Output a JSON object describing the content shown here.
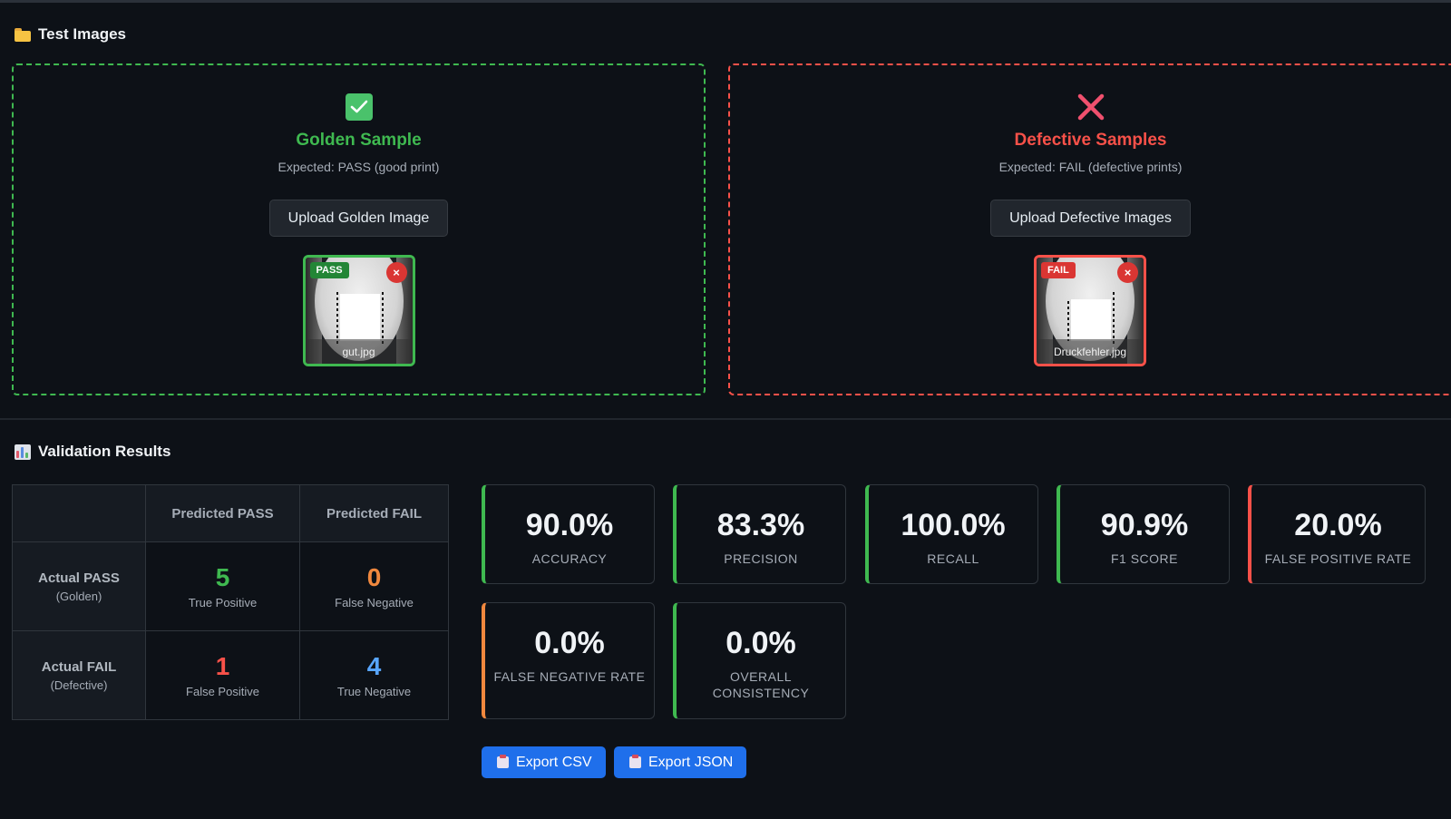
{
  "test_images": {
    "title": "Test Images",
    "golden": {
      "title": "Golden Sample",
      "subtitle": "Expected: PASS (good print)",
      "upload_label": "Upload Golden Image",
      "badge": "PASS",
      "remove": "×",
      "filename": "gut.jpg"
    },
    "defective": {
      "title": "Defective Samples",
      "subtitle": "Expected: FAIL (defective prints)",
      "upload_label": "Upload Defective Images",
      "badge": "FAIL",
      "remove": "×",
      "filename": "Druckfehler.jpg"
    }
  },
  "results": {
    "title": "Validation Results",
    "matrix": {
      "col_headers": [
        "Predicted PASS",
        "Predicted FAIL"
      ],
      "rows": [
        {
          "label": "Actual PASS",
          "sublabel": "(Golden)",
          "cells": [
            {
              "value": "5",
              "caption": "True Positive",
              "color": "#3fb950"
            },
            {
              "value": "0",
              "caption": "False Negative",
              "color": "#f0883e"
            }
          ]
        },
        {
          "label": "Actual FAIL",
          "sublabel": "(Defective)",
          "cells": [
            {
              "value": "1",
              "caption": "False Positive",
              "color": "#f85149"
            },
            {
              "value": "4",
              "caption": "True Negative",
              "color": "#58a6ff"
            }
          ]
        }
      ]
    },
    "metrics": [
      {
        "value": "90.0%",
        "label": "ACCURACY",
        "accent": "#3fb950"
      },
      {
        "value": "83.3%",
        "label": "PRECISION",
        "accent": "#3fb950"
      },
      {
        "value": "100.0%",
        "label": "RECALL",
        "accent": "#3fb950"
      },
      {
        "value": "90.9%",
        "label": "F1 SCORE",
        "accent": "#3fb950"
      },
      {
        "value": "20.0%",
        "label": "FALSE POSITIVE RATE",
        "accent": "#f85149"
      },
      {
        "value": "0.0%",
        "label": "FALSE NEGATIVE RATE",
        "accent": "#f0883e"
      },
      {
        "value": "0.0%",
        "label": "OVERALL CONSISTENCY",
        "accent": "#3fb950"
      }
    ],
    "export_csv": "Export CSV",
    "export_json": "Export JSON"
  }
}
